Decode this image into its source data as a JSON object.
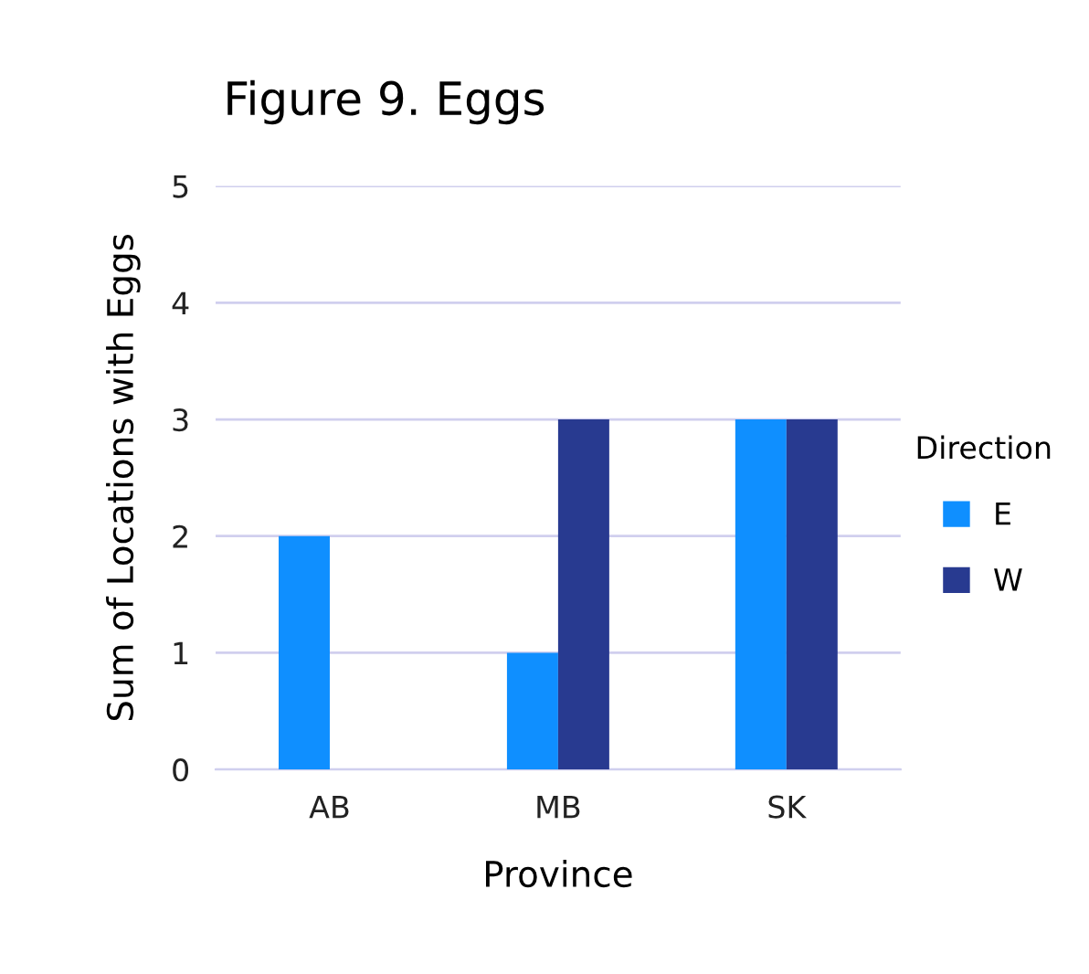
{
  "chart_data": {
    "type": "bar",
    "title": "Figure 9. Eggs",
    "xlabel": "Province",
    "ylabel": "Sum of Locations with Eggs",
    "legend_title": "Direction",
    "categories": [
      "AB",
      "MB",
      "SK"
    ],
    "series": [
      {
        "name": "E",
        "color": "#0f8fff",
        "values": [
          2,
          1,
          3
        ]
      },
      {
        "name": "W",
        "color": "#283a90",
        "values": [
          null,
          3,
          3
        ]
      }
    ],
    "ylim": [
      0,
      5
    ],
    "yticks": [
      0,
      1,
      2,
      3,
      4,
      5
    ],
    "grid": "y",
    "legend": "right"
  }
}
